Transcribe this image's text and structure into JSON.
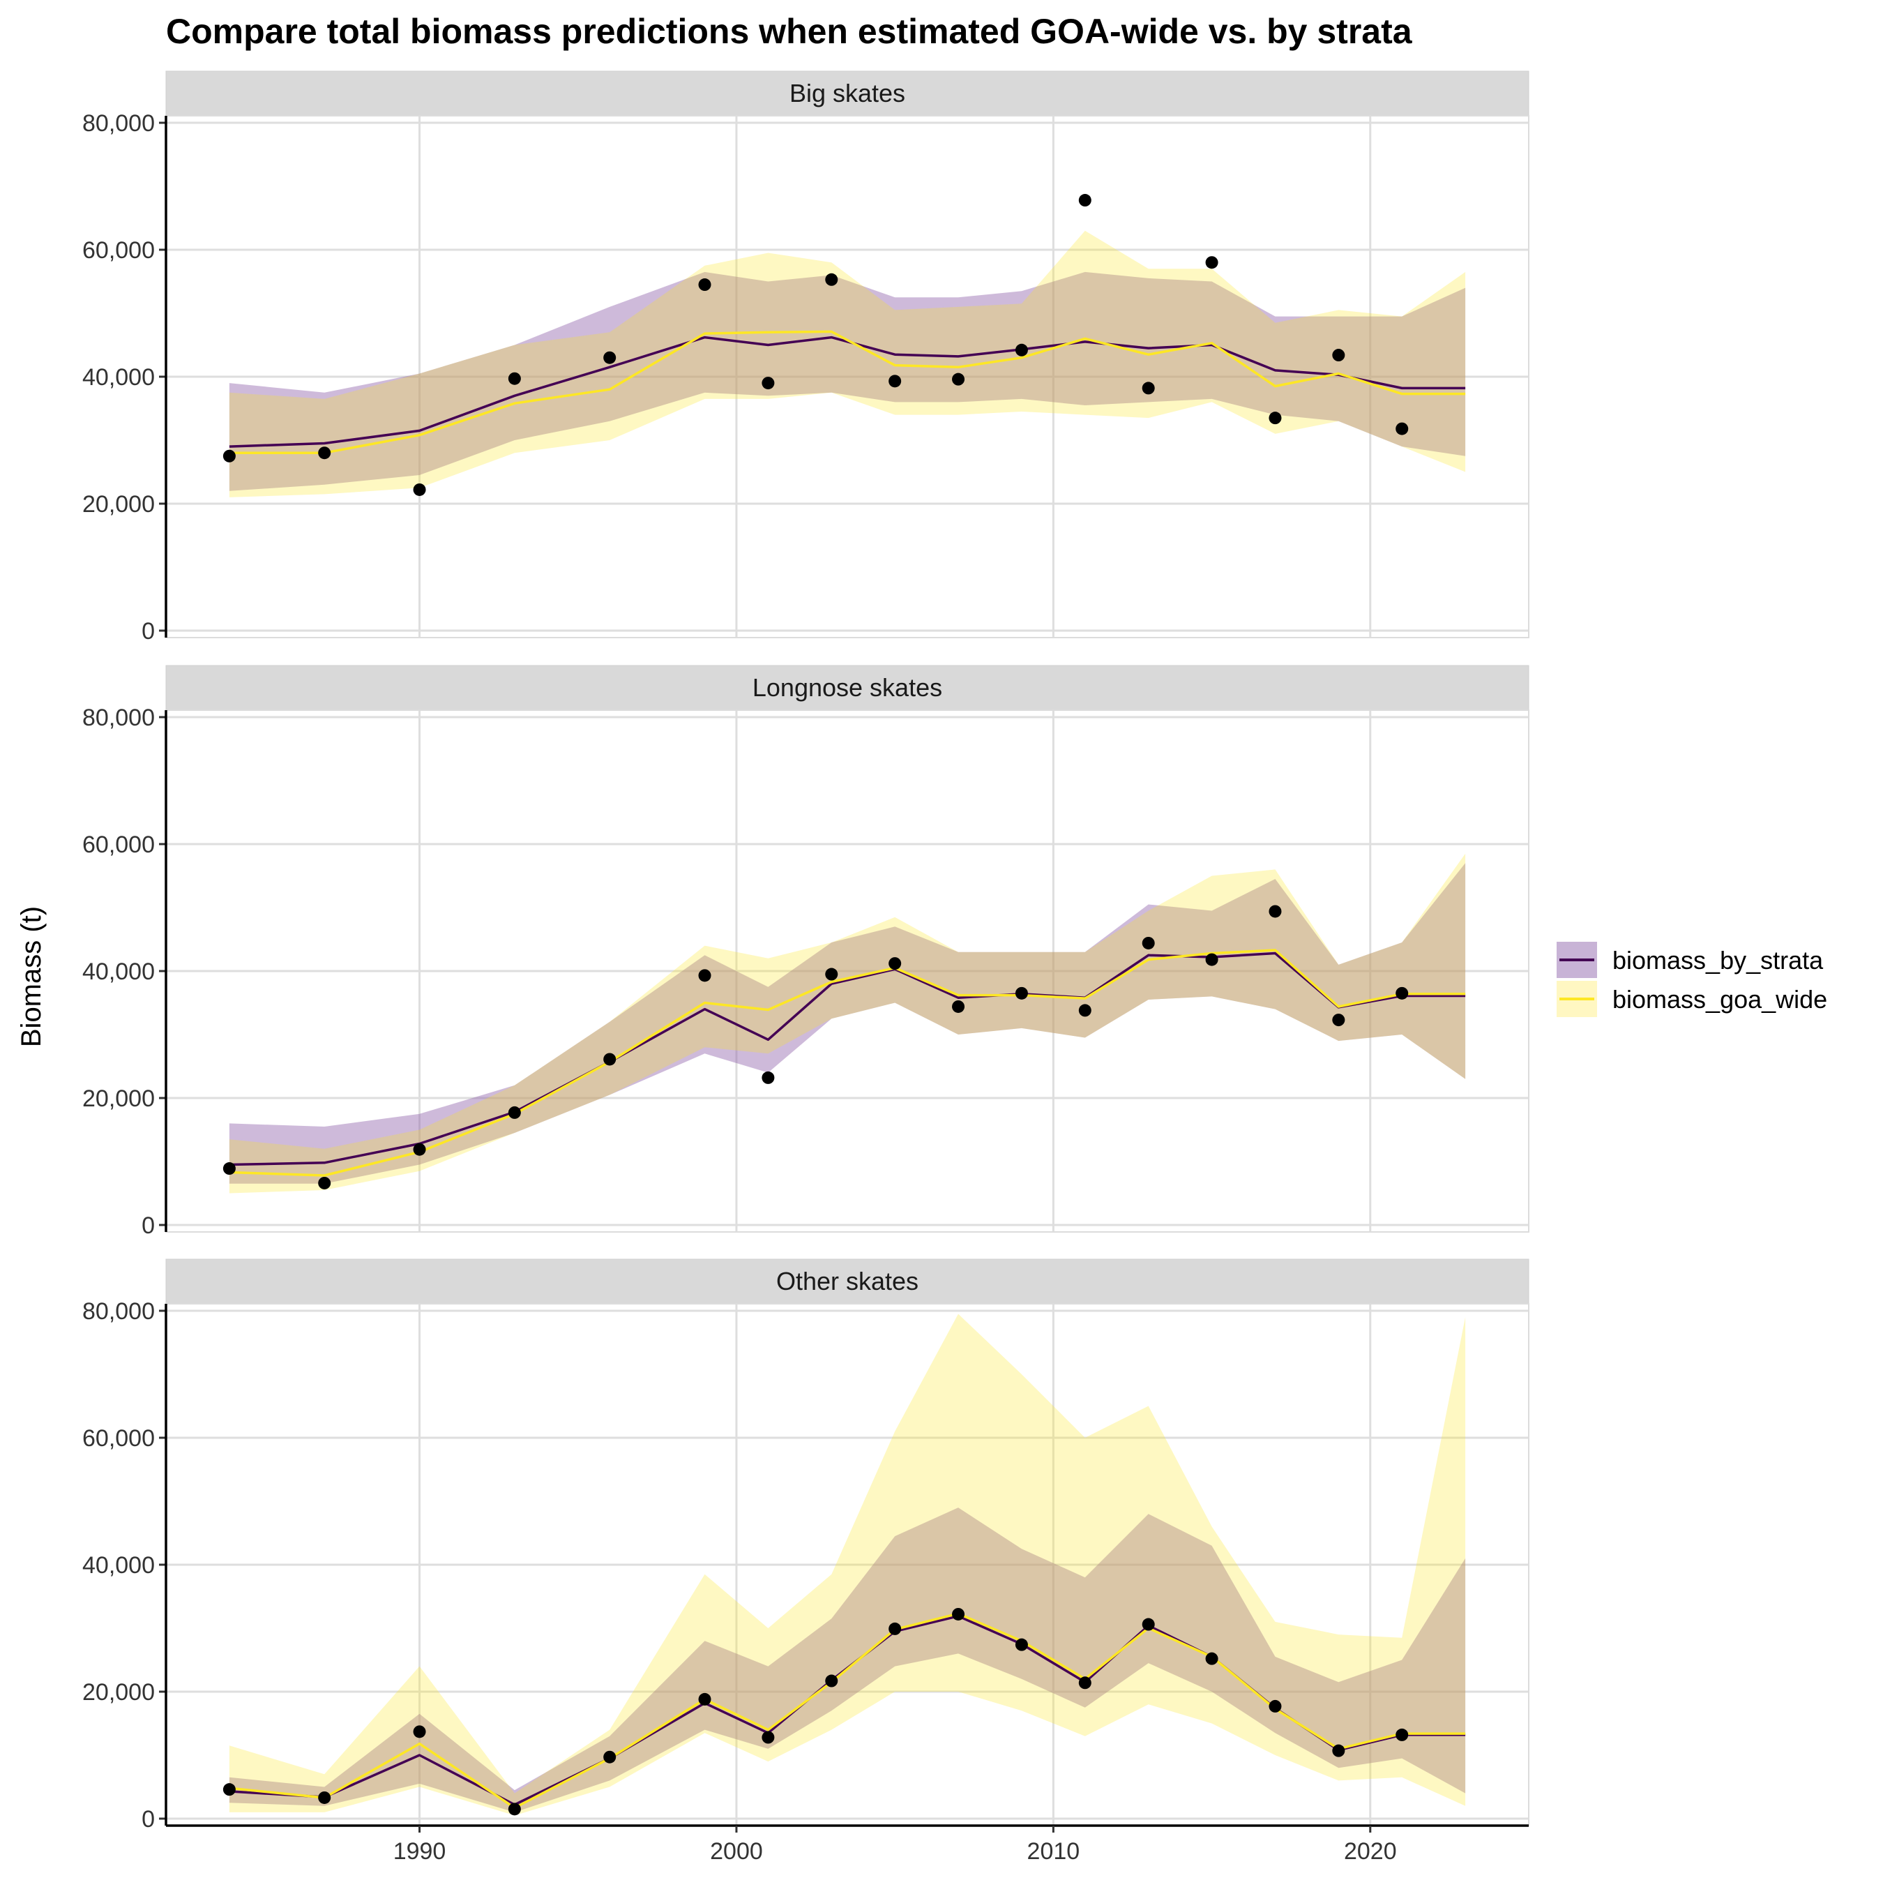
{
  "chart_data": {
    "type": "line",
    "title": "Compare total biomass predictions when estimated GOA-wide vs. by strata",
    "ylabel": "Biomass (t)",
    "xlabel": "",
    "xlim": [
      1982,
      2025
    ],
    "ylim": [
      0,
      80000
    ],
    "x_ticks": [
      1990,
      2000,
      2010,
      2020
    ],
    "y_ticks": [
      0,
      20000,
      40000,
      60000,
      80000
    ],
    "y_tick_labels": [
      "0",
      "20,000",
      "40,000",
      "60,000",
      "80,000"
    ],
    "grid": true,
    "legend_position": "right",
    "legend": [
      {
        "key": "biomass_by_strata",
        "label": "biomass_by_strata",
        "line_color": "#440154",
        "fill_color": "#C8B3D6"
      },
      {
        "key": "biomass_goa_wide",
        "label": "biomass_goa_wide",
        "line_color": "#FDE725",
        "fill_color": "#FFF7C2"
      }
    ],
    "panels": [
      {
        "name": "Big skates",
        "strata": {
          "x": [
            1984,
            1987,
            1990,
            1993,
            1996,
            1999,
            2001,
            2003,
            2005,
            2007,
            2009,
            2011,
            2013,
            2015,
            2017,
            2019,
            2021,
            2023
          ],
          "y": [
            29000,
            29500,
            31500,
            37000,
            41500,
            46200,
            45000,
            46200,
            43500,
            43200,
            44300,
            45500,
            44500,
            45000,
            41000,
            40300,
            38200,
            38200
          ],
          "lower": [
            22000,
            23000,
            24500,
            30000,
            33000,
            37500,
            37000,
            37500,
            36000,
            36000,
            36500,
            35500,
            36000,
            36500,
            34000,
            33000,
            29000,
            27500
          ],
          "upper": [
            39000,
            37500,
            40500,
            45000,
            51000,
            56500,
            55000,
            56000,
            52500,
            52500,
            53500,
            56500,
            55500,
            55000,
            49500,
            49500,
            49500,
            54000
          ]
        },
        "goa": {
          "x": [
            1984,
            1987,
            1990,
            1993,
            1996,
            1999,
            2001,
            2003,
            2005,
            2007,
            2009,
            2011,
            2013,
            2015,
            2017,
            2019,
            2021,
            2023
          ],
          "y": [
            28000,
            28000,
            30800,
            35800,
            38000,
            46800,
            47000,
            47100,
            41800,
            41500,
            43000,
            46000,
            43500,
            45300,
            38500,
            40500,
            37300,
            37300
          ],
          "lower": [
            21000,
            21500,
            22500,
            28000,
            30000,
            36500,
            36500,
            37500,
            34000,
            34000,
            34500,
            34000,
            33500,
            36000,
            31000,
            33000,
            29000,
            25000
          ],
          "upper": [
            37500,
            36500,
            40500,
            45000,
            47000,
            57500,
            59500,
            58000,
            50500,
            51000,
            51500,
            63000,
            57000,
            57000,
            48500,
            50500,
            49500,
            56500
          ]
        },
        "points": {
          "x": [
            1984,
            1987,
            1990,
            1993,
            1996,
            1999,
            2001,
            2003,
            2005,
            2007,
            2009,
            2011,
            2013,
            2015,
            2017,
            2019,
            2021
          ],
          "y": [
            27500,
            28000,
            22200,
            39700,
            43000,
            54500,
            39000,
            55300,
            39300,
            39600,
            44200,
            67800,
            38200,
            58000,
            33500,
            43400,
            31800
          ]
        }
      },
      {
        "name": "Longnose skates",
        "strata": {
          "x": [
            1984,
            1987,
            1990,
            1993,
            1996,
            1999,
            2001,
            2003,
            2005,
            2007,
            2009,
            2011,
            2013,
            2015,
            2017,
            2019,
            2021,
            2023
          ],
          "y": [
            9500,
            9800,
            12800,
            17800,
            25700,
            34000,
            29200,
            38000,
            40300,
            35800,
            36400,
            35800,
            42500,
            42200,
            42800,
            34300,
            36100,
            36100
          ],
          "lower": [
            6500,
            6500,
            9500,
            14500,
            20500,
            27000,
            24000,
            32500,
            35000,
            30000,
            31000,
            29500,
            35500,
            36000,
            34000,
            29000,
            30000,
            23000
          ],
          "upper": [
            16000,
            15500,
            17500,
            22000,
            32000,
            42500,
            37500,
            44500,
            47000,
            43000,
            43000,
            43000,
            50500,
            49500,
            54500,
            41000,
            44500,
            57000
          ]
        },
        "goa": {
          "x": [
            1984,
            1987,
            1990,
            1993,
            1996,
            1999,
            2001,
            2003,
            2005,
            2007,
            2009,
            2011,
            2013,
            2015,
            2017,
            2019,
            2021,
            2023
          ],
          "y": [
            8300,
            7800,
            11500,
            17500,
            25700,
            35000,
            33900,
            38300,
            40500,
            36200,
            36200,
            35700,
            41800,
            42800,
            43300,
            34400,
            36400,
            36400
          ],
          "lower": [
            5000,
            5500,
            8500,
            14500,
            20500,
            28000,
            27000,
            32500,
            35000,
            30000,
            31000,
            29500,
            35500,
            36000,
            34000,
            29000,
            30000,
            23000
          ],
          "upper": [
            13500,
            12000,
            15000,
            22000,
            32000,
            44000,
            42000,
            44500,
            48500,
            43000,
            43000,
            43000,
            49500,
            55000,
            56000,
            41000,
            44500,
            58500
          ]
        },
        "points": {
          "x": [
            1984,
            1987,
            1990,
            1993,
            1996,
            1999,
            2001,
            2003,
            2005,
            2007,
            2009,
            2011,
            2013,
            2015,
            2017,
            2019,
            2021
          ],
          "y": [
            8900,
            6600,
            11900,
            17700,
            26100,
            39300,
            23200,
            39500,
            41200,
            34400,
            36500,
            33800,
            44400,
            41800,
            49400,
            32300,
            36500
          ]
        }
      },
      {
        "name": "Other skates",
        "strata": {
          "x": [
            1984,
            1987,
            1990,
            1993,
            1996,
            1999,
            2001,
            2003,
            2005,
            2007,
            2009,
            2011,
            2013,
            2015,
            2017,
            2019,
            2021,
            2023
          ],
          "y": [
            4300,
            3400,
            10000,
            2200,
            9500,
            18200,
            13500,
            21800,
            29500,
            31900,
            27500,
            21500,
            30400,
            25500,
            17400,
            10800,
            13200,
            13200
          ],
          "lower": [
            2500,
            2000,
            5500,
            1000,
            6000,
            14000,
            11000,
            17000,
            24000,
            26000,
            22000,
            17500,
            24500,
            20000,
            13500,
            8000,
            9500,
            4000
          ],
          "upper": [
            6500,
            5000,
            16500,
            4500,
            13000,
            28000,
            24000,
            31500,
            44500,
            49000,
            42500,
            38000,
            48000,
            43000,
            25500,
            21500,
            25000,
            41000
          ]
        },
        "goa": {
          "x": [
            1984,
            1987,
            1990,
            1993,
            1996,
            1999,
            2001,
            2003,
            2005,
            2007,
            2009,
            2011,
            2013,
            2015,
            2017,
            2019,
            2021,
            2023
          ],
          "y": [
            4800,
            3300,
            11800,
            1700,
            9500,
            18800,
            14000,
            21500,
            29800,
            32300,
            28000,
            22000,
            30000,
            25500,
            17300,
            11000,
            13400,
            13400
          ],
          "lower": [
            1000,
            1000,
            5000,
            500,
            5000,
            13500,
            9000,
            14000,
            20000,
            20000,
            17000,
            13000,
            18000,
            15000,
            10000,
            6000,
            6500,
            2000
          ],
          "upper": [
            11500,
            7000,
            24000,
            4000,
            14000,
            38500,
            30000,
            38500,
            61000,
            79500,
            70000,
            60000,
            65000,
            46000,
            31000,
            29000,
            28500,
            79000
          ]
        },
        "points": {
          "x": [
            1984,
            1987,
            1990,
            1993,
            1996,
            1999,
            2001,
            2003,
            2005,
            2007,
            2009,
            2011,
            2013,
            2015,
            2017,
            2019,
            2021
          ],
          "y": [
            4600,
            3300,
            13700,
            1500,
            9700,
            18800,
            12800,
            21700,
            29900,
            32200,
            27400,
            21400,
            30600,
            25200,
            17700,
            10700,
            13200
          ]
        }
      }
    ]
  }
}
